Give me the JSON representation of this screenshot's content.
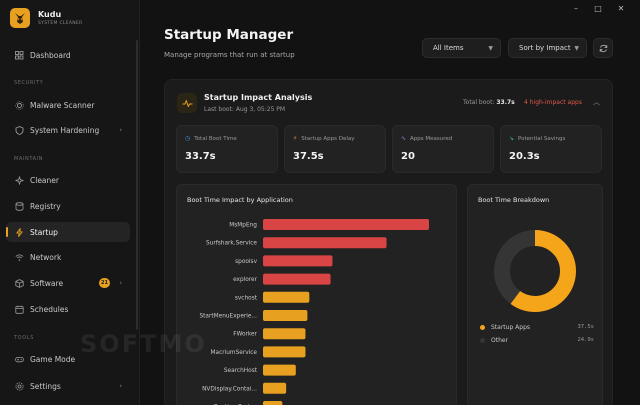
{
  "app": {
    "name": "Kudu",
    "subtitle": "SYSTEM CLEANER"
  },
  "window_controls": {
    "minimize": "–",
    "maximize": "□",
    "close": "✕"
  },
  "sidebar": {
    "sections": [
      {
        "label": "SECURITY"
      },
      {
        "label": "MAINTAIN"
      },
      {
        "label": "TOOLS"
      }
    ],
    "items": [
      {
        "label": "Dashboard",
        "icon": "grid-icon"
      },
      {
        "label": "Malware Scanner",
        "icon": "gear-icon"
      },
      {
        "label": "System Hardening",
        "icon": "shield-icon"
      },
      {
        "label": "Cleaner",
        "icon": "sparkle-icon"
      },
      {
        "label": "Registry",
        "icon": "database-icon"
      },
      {
        "label": "Startup",
        "icon": "bolt-icon",
        "active": true
      },
      {
        "label": "Network",
        "icon": "wifi-icon"
      },
      {
        "label": "Software",
        "icon": "package-icon",
        "badge": "21"
      },
      {
        "label": "Schedules",
        "icon": "calendar-icon"
      },
      {
        "label": "Game Mode",
        "icon": "gamepad-icon"
      },
      {
        "label": "Settings",
        "icon": "settings-icon"
      }
    ]
  },
  "header": {
    "title": "Startup Manager",
    "subtitle": "Manage programs that run at startup",
    "filter": "All Items",
    "sort": "Sort by Impact"
  },
  "impact": {
    "title": "Startup Impact Analysis",
    "last_boot": "Last boot: Aug 3, 05:25 PM",
    "total_boot_label": "Total boot:",
    "total_boot_value": "33.7s",
    "high_impact": "4 high-impact apps"
  },
  "stats": [
    {
      "label": "Total Boot Time",
      "value": "33.7s",
      "icon": "clock-icon",
      "color": "#4a8fe0"
    },
    {
      "label": "Startup Apps Delay",
      "value": "37.5s",
      "icon": "bolt-icon",
      "color": "#e8a020"
    },
    {
      "label": "Apps Measured",
      "value": "20",
      "icon": "pulse-icon",
      "color": "#8a8ae0"
    },
    {
      "label": "Potential Savings",
      "value": "20.3s",
      "icon": "trend-icon",
      "color": "#3cc08a"
    }
  ],
  "chart_data": {
    "type": "bar",
    "orientation": "horizontal",
    "title": "Boot Time Impact by Application",
    "categories": [
      "MsMpEng",
      "Surfshark.Service",
      "spoolsv",
      "explorer",
      "svchost",
      "StartMenuExperie...",
      "FWorker",
      "MacriumService",
      "SearchHost",
      "NVDisplay.Contai...",
      "RuntimeBroker"
    ],
    "values": [
      8.6,
      6.4,
      3.6,
      3.5,
      2.4,
      2.3,
      2.2,
      2.2,
      1.7,
      1.2,
      1.0
    ],
    "colors": [
      "#d94545",
      "#d94545",
      "#d94545",
      "#d94545",
      "#e8a020",
      "#e8a020",
      "#e8a020",
      "#e8a020",
      "#e8a020",
      "#e8a020",
      "#e8a020"
    ],
    "xlim": [
      0,
      8.6
    ]
  },
  "breakdown": {
    "title": "Boot Time Breakdown",
    "chart_data": {
      "type": "pie",
      "donut": true,
      "labels": [
        "Startup Apps",
        "Other"
      ],
      "values": [
        37.5,
        24.9
      ],
      "display": [
        "37.5s",
        "24.9s"
      ],
      "colors": [
        "#f5a51a",
        "#353535"
      ]
    }
  },
  "watermark": "SOFTMO"
}
